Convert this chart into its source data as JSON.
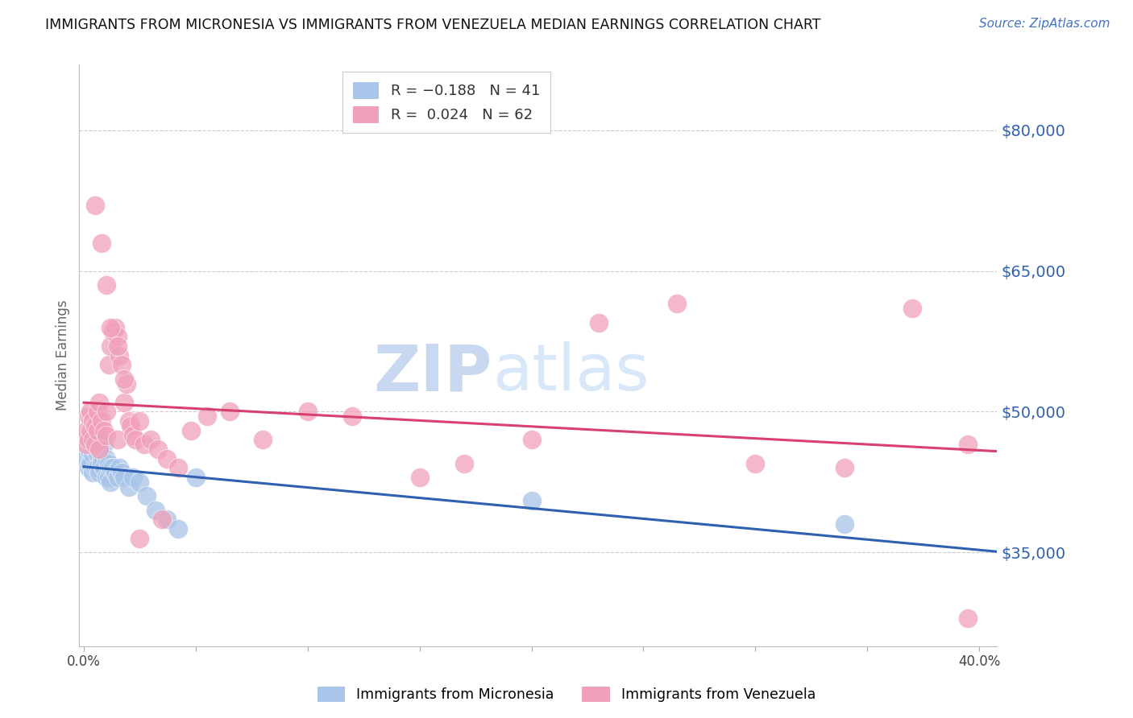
{
  "title": "IMMIGRANTS FROM MICRONESIA VS IMMIGRANTS FROM VENEZUELA MEDIAN EARNINGS CORRELATION CHART",
  "source": "Source: ZipAtlas.com",
  "ylabel": "Median Earnings",
  "xlim": [
    -0.002,
    0.408
  ],
  "ylim": [
    25000,
    87000
  ],
  "yticks": [
    35000,
    50000,
    65000,
    80000
  ],
  "ytick_labels": [
    "$35,000",
    "$50,000",
    "$65,000",
    "$80,000"
  ],
  "xticks": [
    0.0,
    0.05,
    0.1,
    0.15,
    0.2,
    0.25,
    0.3,
    0.35,
    0.4
  ],
  "xtick_labels": [
    "0.0%",
    "",
    "",
    "",
    "",
    "",
    "",
    "",
    "40.0%"
  ],
  "micronesia_color": "#a8c4e8",
  "venezuela_color": "#f0a0b8",
  "micronesia_line_color": "#3060b0",
  "venezuela_line_color": "#d84070",
  "watermark_zip": "ZIP",
  "watermark_atlas": "atlas",
  "watermark_color": "#c8d8f0",
  "background_color": "#ffffff",
  "grid_color": "#cccccc",
  "micronesia_x": [
    0.001,
    0.001,
    0.002,
    0.002,
    0.003,
    0.003,
    0.004,
    0.004,
    0.005,
    0.005,
    0.005,
    0.006,
    0.006,
    0.007,
    0.007,
    0.008,
    0.008,
    0.009,
    0.009,
    0.01,
    0.01,
    0.011,
    0.011,
    0.012,
    0.012,
    0.013,
    0.014,
    0.015,
    0.016,
    0.017,
    0.018,
    0.02,
    0.022,
    0.025,
    0.028,
    0.032,
    0.037,
    0.042,
    0.05,
    0.2,
    0.34
  ],
  "micronesia_y": [
    47000,
    45000,
    46000,
    44000,
    46500,
    44500,
    45500,
    43500,
    47000,
    46000,
    44000,
    45500,
    44000,
    46000,
    43500,
    45000,
    44500,
    46500,
    44000,
    45000,
    43000,
    44500,
    43000,
    44000,
    42500,
    44000,
    43500,
    43000,
    44000,
    43500,
    43000,
    42000,
    43000,
    42500,
    41000,
    39500,
    38500,
    37500,
    43000,
    40500,
    38000
  ],
  "venezuela_x": [
    0.001,
    0.001,
    0.002,
    0.002,
    0.003,
    0.003,
    0.004,
    0.004,
    0.005,
    0.005,
    0.006,
    0.006,
    0.007,
    0.007,
    0.008,
    0.009,
    0.01,
    0.01,
    0.011,
    0.012,
    0.013,
    0.014,
    0.015,
    0.015,
    0.016,
    0.017,
    0.018,
    0.019,
    0.02,
    0.021,
    0.022,
    0.023,
    0.025,
    0.027,
    0.03,
    0.033,
    0.037,
    0.042,
    0.048,
    0.055,
    0.065,
    0.08,
    0.1,
    0.12,
    0.15,
    0.17,
    0.2,
    0.23,
    0.265,
    0.3,
    0.34,
    0.37,
    0.395,
    0.395,
    0.005,
    0.008,
    0.01,
    0.012,
    0.015,
    0.018,
    0.025,
    0.035
  ],
  "venezuela_y": [
    48000,
    46500,
    49500,
    47000,
    50000,
    48000,
    49000,
    47000,
    48500,
    46500,
    50000,
    48000,
    51000,
    46000,
    49000,
    48000,
    50000,
    47500,
    55000,
    57000,
    58500,
    59000,
    58000,
    47000,
    56000,
    55000,
    51000,
    53000,
    49000,
    48500,
    47500,
    47000,
    49000,
    46500,
    47000,
    46000,
    45000,
    44000,
    48000,
    49500,
    50000,
    47000,
    50000,
    49500,
    43000,
    44500,
    47000,
    59500,
    61500,
    44500,
    44000,
    61000,
    46500,
    28000,
    72000,
    68000,
    63500,
    59000,
    57000,
    53500,
    36500,
    38500
  ]
}
